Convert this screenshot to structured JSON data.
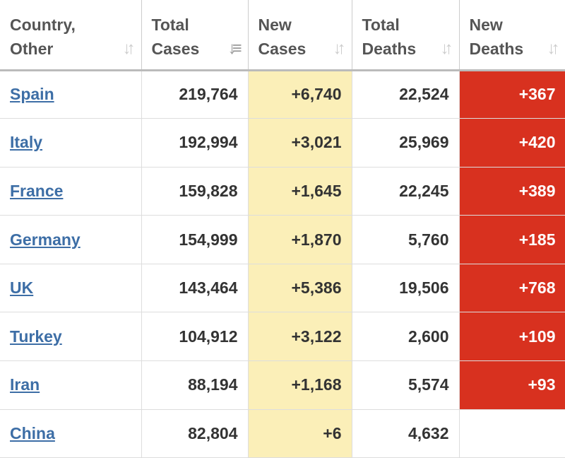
{
  "colors": {
    "new_cases_bg": "#fbefb8",
    "new_deaths_bg": "#d8311f",
    "link": "#3d6ea6"
  },
  "headers": [
    {
      "line1": "Country,",
      "line2": "Other",
      "sort_icon": "sort-icon"
    },
    {
      "line1": "Total",
      "line2": "Cases",
      "sort_icon": "sort-desc-icon"
    },
    {
      "line1": "New",
      "line2": "Cases",
      "sort_icon": "sort-icon"
    },
    {
      "line1": "Total",
      "line2": "Deaths",
      "sort_icon": "sort-icon"
    },
    {
      "line1": "New",
      "line2": "Deaths",
      "sort_icon": "sort-icon"
    }
  ],
  "rows": [
    {
      "country": "Spain",
      "total_cases": "219,764",
      "new_cases": "+6,740",
      "total_deaths": "22,524",
      "new_deaths": "+367"
    },
    {
      "country": "Italy",
      "total_cases": "192,994",
      "new_cases": "+3,021",
      "total_deaths": "25,969",
      "new_deaths": "+420"
    },
    {
      "country": "France",
      "total_cases": "159,828",
      "new_cases": "+1,645",
      "total_deaths": "22,245",
      "new_deaths": "+389"
    },
    {
      "country": "Germany",
      "total_cases": "154,999",
      "new_cases": "+1,870",
      "total_deaths": "5,760",
      "new_deaths": "+185"
    },
    {
      "country": "UK",
      "total_cases": "143,464",
      "new_cases": "+5,386",
      "total_deaths": "19,506",
      "new_deaths": "+768"
    },
    {
      "country": "Turkey",
      "total_cases": "104,912",
      "new_cases": "+3,122",
      "total_deaths": "2,600",
      "new_deaths": "+109"
    },
    {
      "country": "Iran",
      "total_cases": "88,194",
      "new_cases": "+1,168",
      "total_deaths": "5,574",
      "new_deaths": "+93"
    },
    {
      "country": "China",
      "total_cases": "82,804",
      "new_cases": "+6",
      "total_deaths": "4,632",
      "new_deaths": ""
    }
  ]
}
